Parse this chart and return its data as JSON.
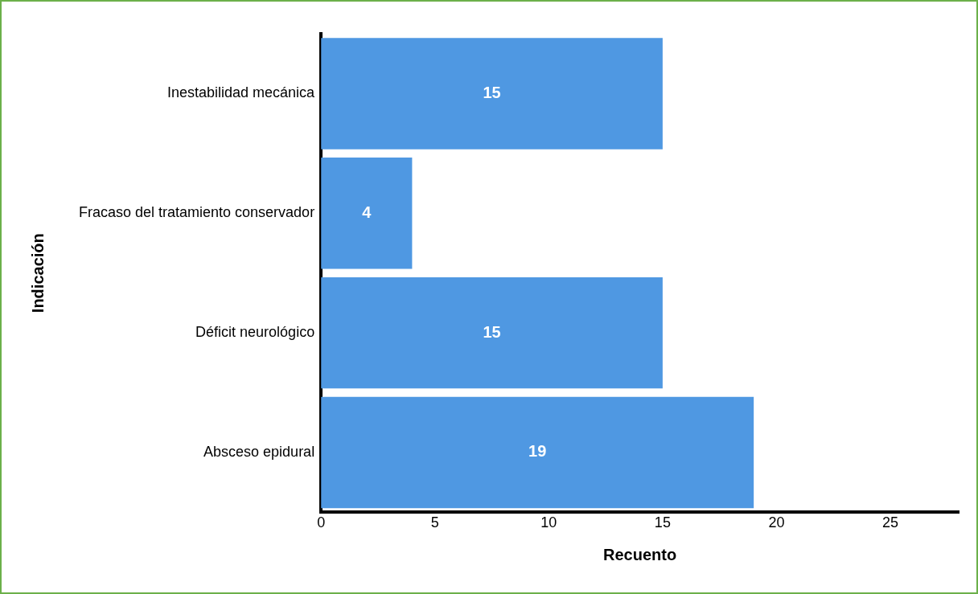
{
  "chart_data": {
    "type": "bar",
    "orientation": "horizontal",
    "xlabel": "Recuento",
    "ylabel": "Indicación",
    "categories": [
      "Inestabilidad mecánica",
      "Fracaso del tratamiento conservador",
      "Déficit neurológico",
      "Absceso epidural"
    ],
    "values": [
      15,
      4,
      15,
      19
    ],
    "color": "#4f98e2",
    "data_labels": true,
    "grid": false,
    "legend": false,
    "xlim": [
      0,
      28
    ],
    "xticks": [
      0,
      5,
      10,
      15,
      20,
      25
    ]
  }
}
